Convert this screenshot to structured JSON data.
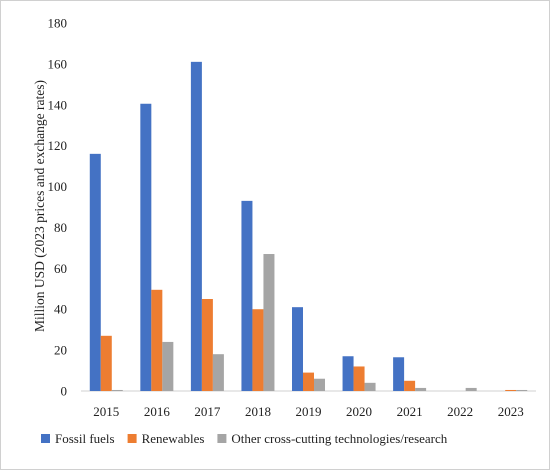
{
  "chart_data": {
    "type": "bar",
    "title": "",
    "xlabel": "",
    "ylabel": "Million USD (2023 prices and exchange rates)",
    "ylim": [
      0,
      180
    ],
    "yticks": [
      0,
      20,
      40,
      60,
      80,
      100,
      120,
      140,
      160,
      180
    ],
    "grid": false,
    "legend_position": "bottom",
    "categories": [
      "2015",
      "2016",
      "2017",
      "2018",
      "2019",
      "2020",
      "2021",
      "2022",
      "2023"
    ],
    "series": [
      {
        "name": "Fossil fuels",
        "color": "#4472C4",
        "values": [
          116,
          140.5,
          161,
          93,
          41,
          17,
          16.5,
          0,
          0
        ]
      },
      {
        "name": "Renewables",
        "color": "#ED7D31",
        "values": [
          27,
          49.5,
          45,
          40,
          9,
          12,
          5,
          0,
          0.5
        ]
      },
      {
        "name": "Other cross-cutting technologies/research",
        "color": "#A5A5A5",
        "values": [
          0.5,
          24,
          18,
          67,
          6,
          4,
          1.5,
          1.5,
          0.5
        ]
      }
    ]
  }
}
